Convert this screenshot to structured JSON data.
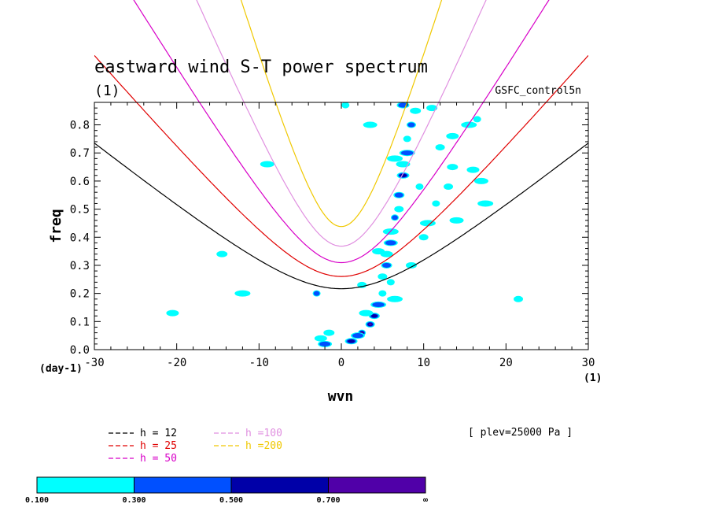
{
  "chart_data": {
    "type": "contour",
    "title": "eastward wind S-T power spectrum",
    "subtitle": "(1)",
    "model": "GSFC_control5n",
    "xlabel": "wvn",
    "ylabel": "freq",
    "x_unit_left": "(day-1)",
    "x_unit_right": "(1)",
    "xlim": [
      -30,
      30
    ],
    "ylim": [
      0,
      0.88
    ],
    "xticks": [
      -30,
      -20,
      -10,
      0,
      10,
      20,
      30
    ],
    "xtick_labels": [
      "-30",
      "-20",
      "-10",
      "0",
      "10",
      "20",
      "30"
    ],
    "yticks": [
      0,
      0.1,
      0.2,
      0.3,
      0.4,
      0.5,
      0.6,
      0.7,
      0.8
    ],
    "ytick_labels": [
      "0.0",
      "0.1",
      "0.2",
      "0.3",
      "0.4",
      "0.5",
      "0.6",
      "0.7",
      "0.8"
    ],
    "level_note": "[ plev=25000 Pa ]",
    "dispersion_curves": [
      {
        "label": "h = 12",
        "color": "#000000"
      },
      {
        "label": "h = 25",
        "color": "#e00000"
      },
      {
        "label": "h = 50",
        "color": "#d800c8"
      },
      {
        "label": "h =100",
        "color": "#e090e0"
      },
      {
        "label": "h =200",
        "color": "#f0c800"
      }
    ],
    "colorbar": {
      "levels": [
        "0.100",
        "0.300",
        "0.500",
        "0.700",
        "∞"
      ],
      "colors": [
        "#00ffff",
        "#0050ff",
        "#0000a8",
        "#5000a8"
      ]
    },
    "contour_patches": [
      {
        "x": 2.5,
        "y": 0.06,
        "level": 3
      },
      {
        "x": 3.5,
        "y": 0.09,
        "level": 3
      },
      {
        "x": 4.0,
        "y": 0.12,
        "level": 2
      },
      {
        "x": 1.2,
        "y": 0.03,
        "level": 2
      },
      {
        "x": 2.0,
        "y": 0.05,
        "level": 1
      },
      {
        "x": 4.5,
        "y": 0.16,
        "level": 1
      },
      {
        "x": 5.0,
        "y": 0.2,
        "level": 0
      },
      {
        "x": 5.0,
        "y": 0.26,
        "level": 0
      },
      {
        "x": 5.5,
        "y": 0.3,
        "level": 1
      },
      {
        "x": 5.5,
        "y": 0.34,
        "level": 0
      },
      {
        "x": 6.0,
        "y": 0.38,
        "level": 1
      },
      {
        "x": 6.0,
        "y": 0.42,
        "level": 0
      },
      {
        "x": 6.5,
        "y": 0.47,
        "level": 1
      },
      {
        "x": 7.0,
        "y": 0.5,
        "level": 0
      },
      {
        "x": 7.0,
        "y": 0.55,
        "level": 1
      },
      {
        "x": 7.5,
        "y": 0.62,
        "level": 2
      },
      {
        "x": 7.5,
        "y": 0.66,
        "level": 0
      },
      {
        "x": 8.0,
        "y": 0.7,
        "level": 1
      },
      {
        "x": 8.0,
        "y": 0.75,
        "level": 0
      },
      {
        "x": 8.5,
        "y": 0.8,
        "level": 1
      },
      {
        "x": 9.0,
        "y": 0.85,
        "level": 0
      },
      {
        "x": 7.5,
        "y": 0.87,
        "level": 1
      },
      {
        "x": 3.0,
        "y": 0.13,
        "level": 0
      },
      {
        "x": 6.5,
        "y": 0.18,
        "level": 0
      },
      {
        "x": 6.0,
        "y": 0.24,
        "level": 0
      },
      {
        "x": 2.5,
        "y": 0.23,
        "level": 0
      },
      {
        "x": -1.5,
        "y": 0.06,
        "level": 0
      },
      {
        "x": -2.5,
        "y": 0.04,
        "level": 0
      },
      {
        "x": -2.0,
        "y": 0.02,
        "level": 1
      },
      {
        "x": 10.5,
        "y": 0.45,
        "level": 0
      },
      {
        "x": 11.5,
        "y": 0.52,
        "level": 0
      },
      {
        "x": 13.0,
        "y": 0.58,
        "level": 0
      },
      {
        "x": 13.5,
        "y": 0.65,
        "level": 0
      },
      {
        "x": 16.0,
        "y": 0.64,
        "level": 0
      },
      {
        "x": 17.0,
        "y": 0.6,
        "level": 0
      },
      {
        "x": 15.5,
        "y": 0.8,
        "level": 0
      },
      {
        "x": 16.5,
        "y": 0.82,
        "level": 0
      },
      {
        "x": 12.0,
        "y": 0.72,
        "level": 0
      },
      {
        "x": 11.0,
        "y": 0.86,
        "level": 0
      },
      {
        "x": 13.5,
        "y": 0.76,
        "level": 0
      },
      {
        "x": 3.5,
        "y": 0.8,
        "level": 0
      },
      {
        "x": 6.5,
        "y": 0.68,
        "level": 0
      },
      {
        "x": 9.5,
        "y": 0.58,
        "level": 0
      },
      {
        "x": 10.0,
        "y": 0.4,
        "level": 0
      },
      {
        "x": 8.5,
        "y": 0.3,
        "level": 0
      },
      {
        "x": 4.5,
        "y": 0.35,
        "level": 0
      },
      {
        "x": 14.0,
        "y": 0.46,
        "level": 0
      },
      {
        "x": 17.5,
        "y": 0.52,
        "level": 0
      },
      {
        "x": 0.5,
        "y": 0.87,
        "level": 0
      },
      {
        "x": 21.5,
        "y": 0.18,
        "level": 0
      },
      {
        "x": -14.5,
        "y": 0.34,
        "level": 0
      },
      {
        "x": -20.5,
        "y": 0.13,
        "level": 0
      },
      {
        "x": -9.0,
        "y": 0.66,
        "level": 0
      },
      {
        "x": -12.0,
        "y": 0.2,
        "level": 0
      },
      {
        "x": -3.0,
        "y": 0.2,
        "level": 1
      }
    ]
  }
}
